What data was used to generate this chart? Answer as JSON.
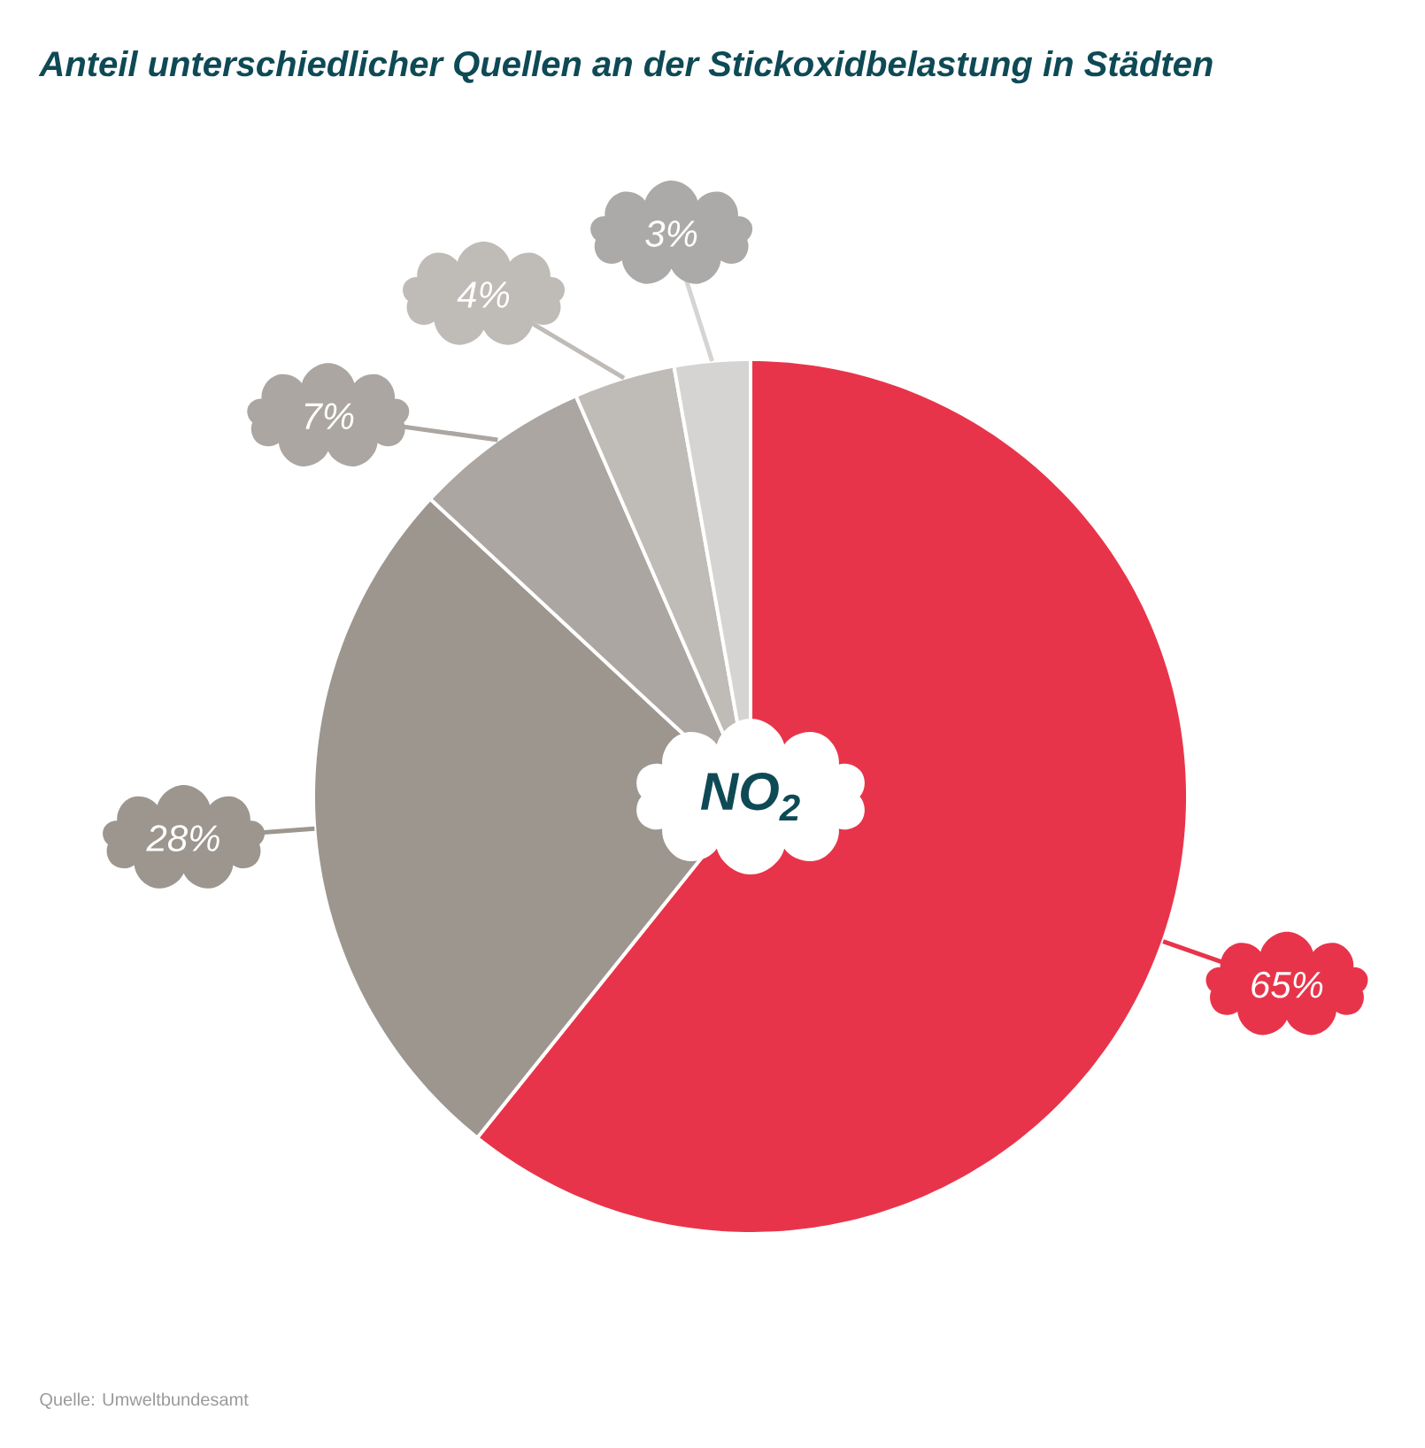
{
  "chart_data": {
    "type": "pie",
    "title": "Anteil unterschiedlicher Quellen an der Stickoxidbelastung in Städten",
    "categories": [
      null,
      null,
      null,
      null,
      null
    ],
    "values": [
      65,
      28,
      7,
      4,
      3
    ],
    "colors": [
      "#e8344a",
      "#9c968f",
      "#aba6a1",
      "#bfbbb7",
      "#d6d4d2"
    ],
    "value_labels": [
      "65%",
      "28%",
      "7%",
      "4%",
      "3%"
    ],
    "annotations": [
      "NO$_{2}$",
      "Quelle: Umweltbundesamt"
    ]
  }
}
